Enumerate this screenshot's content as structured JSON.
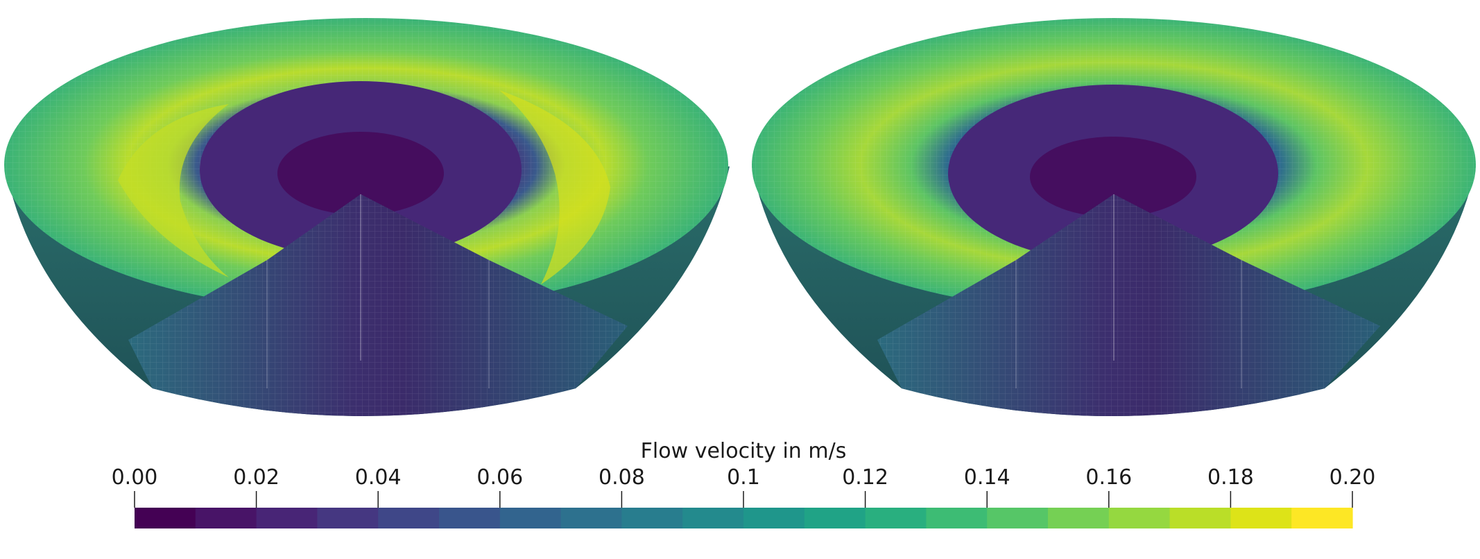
{
  "colorbar": {
    "title": "Flow velocity in m/s",
    "ticks": [
      "0.00",
      "0.02",
      "0.04",
      "0.06",
      "0.08",
      "0.1",
      "0.12",
      "0.14",
      "0.16",
      "0.18",
      "0.20"
    ],
    "range": [
      0.0,
      0.2
    ],
    "segments": 20,
    "colors": [
      "#440154",
      "#481467",
      "#482576",
      "#453781",
      "#3f4788",
      "#39558c",
      "#32648e",
      "#2d718e",
      "#287d8e",
      "#238a8d",
      "#1f968b",
      "#20a386",
      "#29af7f",
      "#3dbc74",
      "#56c667",
      "#75d054",
      "#95d840",
      "#bade28",
      "#dde318",
      "#fde725"
    ]
  },
  "panels": [
    {
      "name": "left-hemisphere"
    },
    {
      "name": "right-hemisphere"
    }
  ]
}
